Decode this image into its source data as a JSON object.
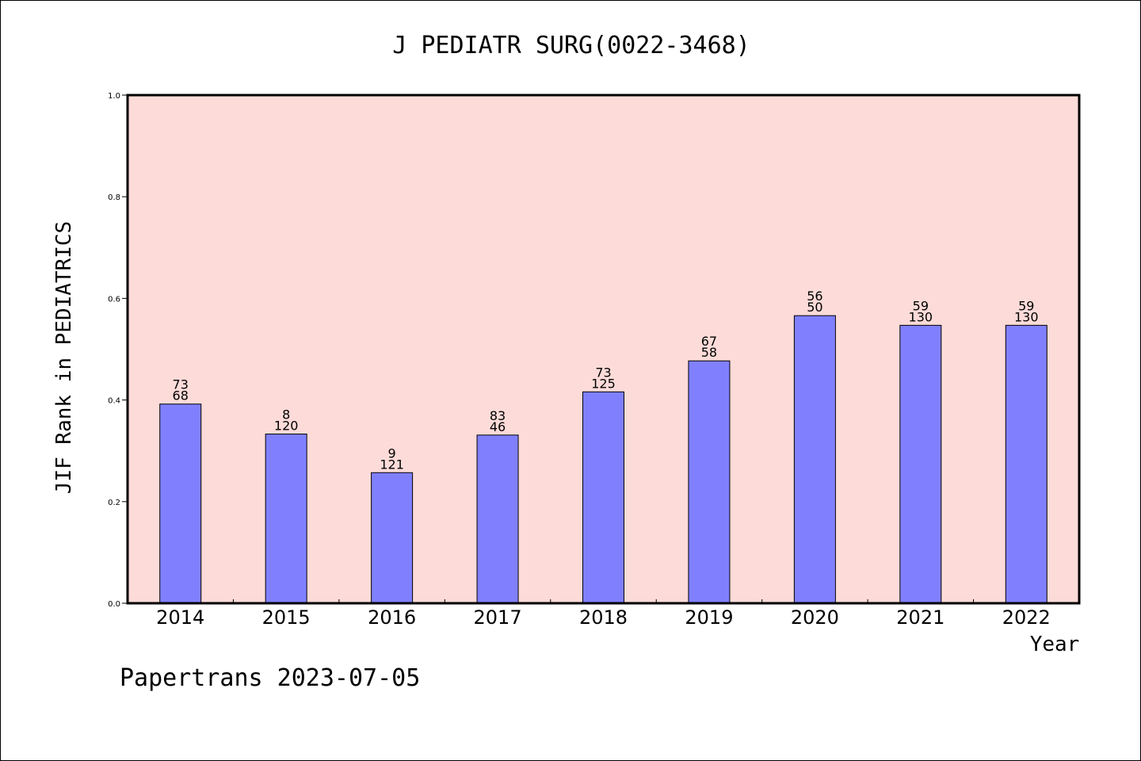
{
  "chart_data": {
    "type": "bar",
    "title": "J PEDIATR SURG(0022-3468)",
    "xlabel": "Year",
    "ylabel": "JIF Rank in PEDIATRICS",
    "ylim": [
      0,
      1.0
    ],
    "yticks": [
      "0.0",
      "0.2",
      "0.4",
      "0.6",
      "0.8",
      "1.0"
    ],
    "grid": false,
    "colors": {
      "plot_background": "#fddbd8",
      "bar_fill": "#8080ff",
      "bar_stroke": "#000000"
    },
    "categories": [
      "2014",
      "2015",
      "2016",
      "2017",
      "2018",
      "2019",
      "2020",
      "2021",
      "2022"
    ],
    "values": [
      0.392,
      0.333,
      0.257,
      0.331,
      0.416,
      0.477,
      0.566,
      0.547,
      0.547
    ],
    "labels_top": [
      "73",
      "8",
      "9",
      "83",
      "73",
      "67",
      "56",
      "59",
      "59"
    ],
    "labels_bottom": [
      "68",
      "120",
      "121",
      "46",
      "125",
      "58",
      "50",
      "130",
      "130"
    ]
  },
  "footer": {
    "text": "Papertrans 2023-07-05"
  }
}
